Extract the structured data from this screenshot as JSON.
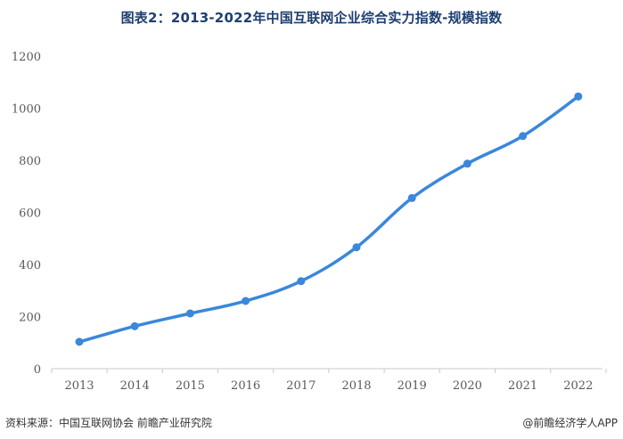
{
  "title": "图表2：2013-2022年中国互联网企业综合实力指数-规模指数",
  "footer": {
    "source": "资料来源：中国互联网协会 前瞻产业研究院",
    "brand": "@前瞻经济学人APP"
  },
  "chart_data": {
    "type": "line",
    "title": "图表2：2013-2022年中国互联网企业综合实力指数-规模指数",
    "xlabel": "",
    "ylabel": "",
    "x": [
      "2013",
      "2014",
      "2015",
      "2016",
      "2017",
      "2018",
      "2019",
      "2020",
      "2021",
      "2022"
    ],
    "series": [
      {
        "values": [
          103,
          163,
          212,
          260,
          336,
          466,
          655,
          787,
          893,
          1045
        ],
        "color": "#3a87dc"
      }
    ],
    "ylim": [
      0,
      1200
    ],
    "yticks": [
      0,
      200,
      400,
      600,
      800,
      1000,
      1200
    ],
    "grid": false,
    "legend": "none",
    "axis_color": "#c9c9c9"
  }
}
